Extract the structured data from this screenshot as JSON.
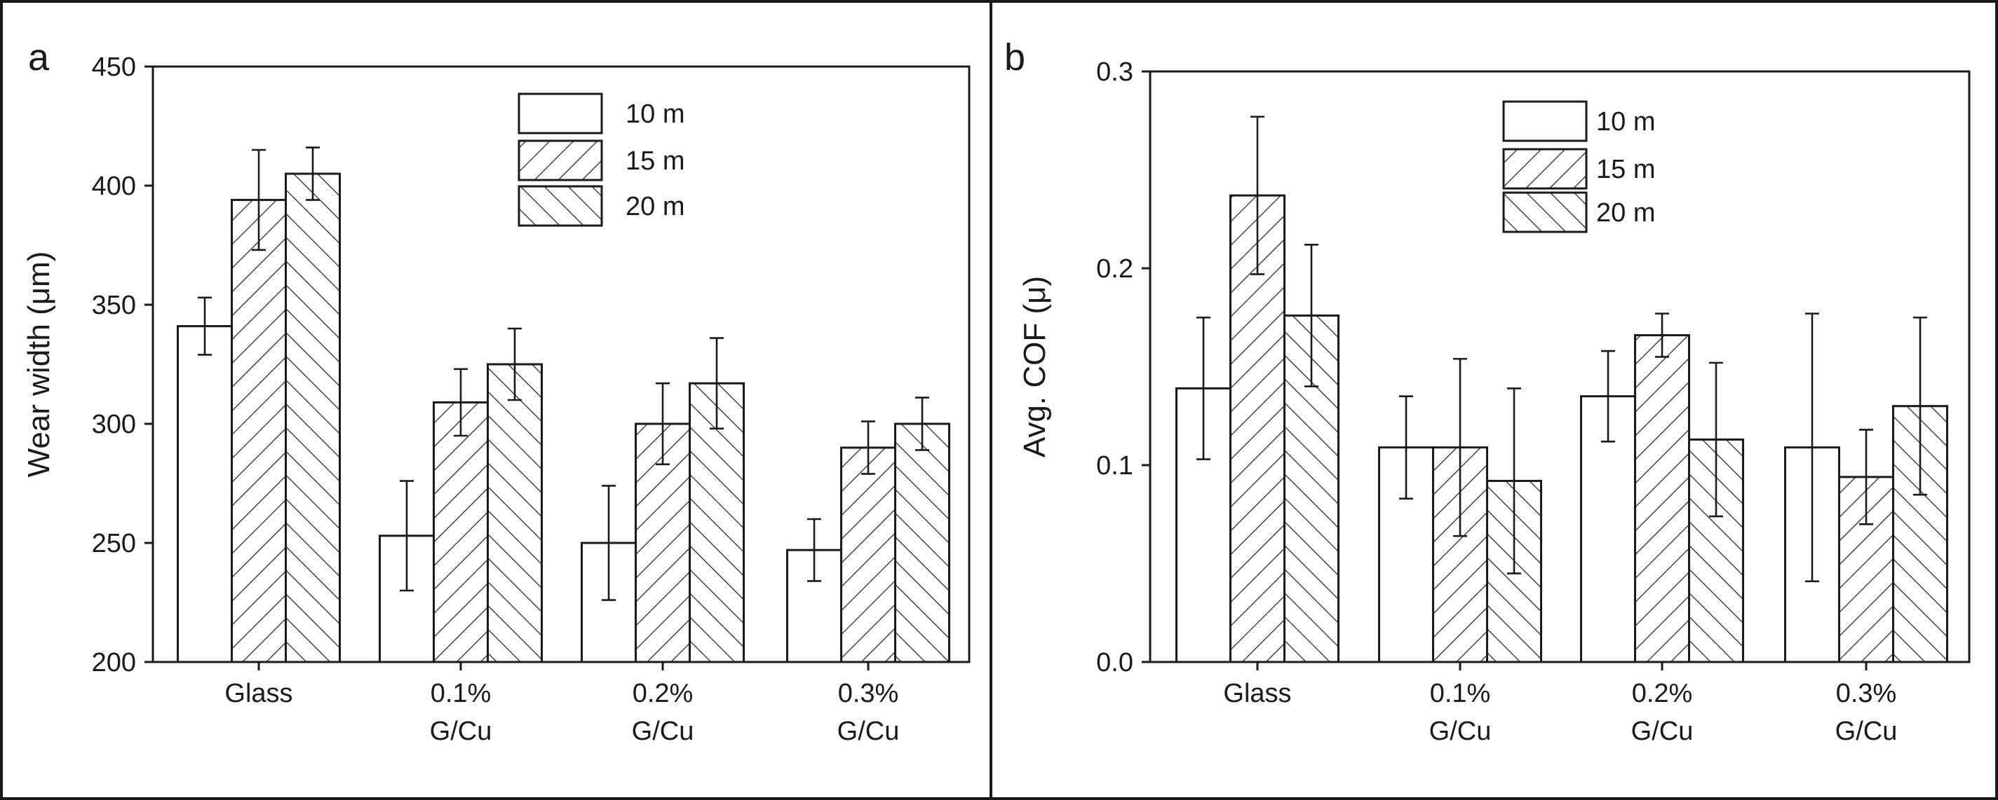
{
  "chart_data": [
    {
      "panel": "a",
      "type": "bar",
      "title": "",
      "xlabel": "",
      "ylabel": "Wear width (μm)",
      "ylim": [
        200,
        450
      ],
      "yticks": [
        "200",
        "250",
        "300",
        "350",
        "400",
        "450"
      ],
      "categories": [
        [
          "Glass"
        ],
        [
          "0.1%",
          "G/Cu"
        ],
        [
          "0.2%",
          "G/Cu"
        ],
        [
          "0.3%",
          "G/Cu"
        ]
      ],
      "legend_position": "top-center",
      "series": [
        {
          "name": "10 m",
          "pattern": "none",
          "values": [
            341,
            253,
            250,
            247
          ],
          "errors": [
            12,
            23,
            24,
            13
          ]
        },
        {
          "name": "15 m",
          "pattern": "forward",
          "values": [
            394,
            309,
            300,
            290
          ],
          "errors": [
            21,
            14,
            17,
            11
          ]
        },
        {
          "name": "20 m",
          "pattern": "backward",
          "values": [
            405,
            325,
            317,
            300
          ],
          "errors": [
            11,
            15,
            19,
            11
          ]
        }
      ]
    },
    {
      "panel": "b",
      "type": "bar",
      "title": "",
      "xlabel": "",
      "ylabel": "Avg. COF (μ)",
      "ylim": [
        0,
        0.3
      ],
      "yticks": [
        "0.0",
        "0.1",
        "0.2",
        "0.3"
      ],
      "categories": [
        [
          "Glass"
        ],
        [
          "0.1%",
          "G/Cu"
        ],
        [
          "0.2%",
          "G/Cu"
        ],
        [
          "0.3%",
          "G/Cu"
        ]
      ],
      "legend_position": "top-center",
      "series": [
        {
          "name": "10 m",
          "pattern": "none",
          "values": [
            0.139,
            0.109,
            0.135,
            0.109
          ],
          "errors": [
            0.036,
            0.026,
            0.023,
            0.068
          ]
        },
        {
          "name": "15 m",
          "pattern": "forward",
          "values": [
            0.237,
            0.109,
            0.166,
            0.094
          ],
          "errors": [
            0.04,
            0.045,
            0.011,
            0.024
          ]
        },
        {
          "name": "20 m",
          "pattern": "backward",
          "values": [
            0.176,
            0.092,
            0.113,
            0.13
          ],
          "errors": [
            0.036,
            0.047,
            0.039,
            0.045
          ]
        }
      ]
    }
  ]
}
